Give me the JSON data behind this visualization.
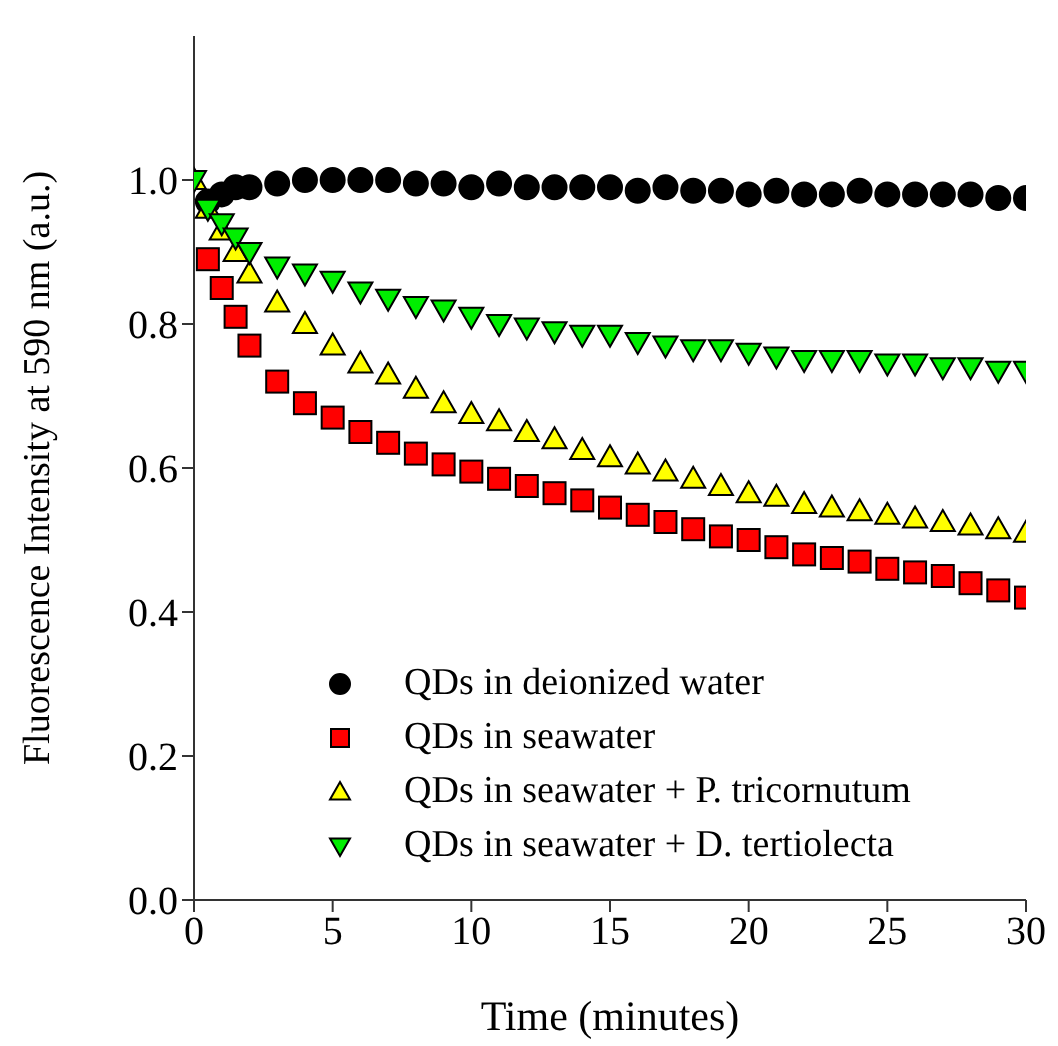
{
  "chart_data": {
    "type": "scatter",
    "xlabel": "Time (minutes)",
    "ylabel": "Fluorescence Intensity at 590 nm (a.u.)",
    "x": [
      0,
      0.5,
      1,
      1.5,
      2,
      3,
      4,
      5,
      6,
      7,
      8,
      9,
      10,
      11,
      12,
      13,
      14,
      15,
      16,
      17,
      18,
      19,
      20,
      21,
      22,
      23,
      24,
      25,
      26,
      27,
      28,
      29,
      30
    ],
    "series": [
      {
        "name": "QDs in deionized water",
        "color": "#000000",
        "marker": "circle",
        "values": [
          null,
          0.97,
          0.98,
          0.99,
          0.99,
          0.995,
          1.0,
          1.0,
          1.0,
          1.0,
          0.995,
          0.995,
          0.99,
          0.995,
          0.99,
          0.99,
          0.99,
          0.99,
          0.985,
          0.99,
          0.985,
          0.985,
          0.98,
          0.985,
          0.98,
          0.98,
          0.985,
          0.98,
          0.98,
          0.98,
          0.98,
          0.975,
          0.975
        ]
      },
      {
        "name": "QDs in seawater",
        "color": "#ff0000",
        "marker": "square",
        "values": [
          null,
          0.89,
          0.85,
          0.81,
          0.77,
          0.72,
          0.69,
          0.67,
          0.65,
          0.635,
          0.62,
          0.605,
          0.595,
          0.585,
          0.575,
          0.565,
          0.555,
          0.545,
          0.535,
          0.525,
          0.515,
          0.505,
          0.5,
          0.49,
          0.48,
          0.475,
          0.47,
          0.46,
          0.455,
          0.45,
          0.44,
          0.43,
          0.42
        ]
      },
      {
        "name": "QDs in seawater + P. tricornutum",
        "color": "#ffff00",
        "marker": "triangle",
        "values": [
          1.0,
          0.96,
          0.93,
          0.9,
          0.87,
          0.83,
          0.8,
          0.77,
          0.745,
          0.73,
          0.71,
          0.69,
          0.675,
          0.665,
          0.65,
          0.64,
          0.625,
          0.615,
          0.605,
          0.595,
          0.585,
          0.575,
          0.565,
          0.56,
          0.55,
          0.545,
          0.54,
          0.535,
          0.53,
          0.525,
          0.52,
          0.515,
          0.51
        ]
      },
      {
        "name": "QDs in seawater + D. tertiolecta",
        "color": "#00ee00",
        "marker": "triangle-down",
        "values": [
          1.0,
          0.96,
          0.94,
          0.92,
          0.9,
          0.88,
          0.87,
          0.86,
          0.845,
          0.835,
          0.825,
          0.82,
          0.81,
          0.8,
          0.795,
          0.79,
          0.785,
          0.785,
          0.775,
          0.77,
          0.765,
          0.765,
          0.76,
          0.755,
          0.75,
          0.75,
          0.75,
          0.745,
          0.745,
          0.74,
          0.74,
          0.735,
          0.735
        ]
      }
    ],
    "xlim": [
      0,
      30
    ],
    "xticks": [
      0,
      5,
      10,
      15,
      20,
      25,
      30
    ],
    "ylim": [
      0,
      1.2
    ],
    "yticks": [
      {
        "value": 0,
        "label": "0.0"
      },
      0.2,
      0.4,
      0.6,
      0.8,
      {
        "value": 1,
        "label": "1.0"
      }
    ],
    "grid": false,
    "legend": "bottom left"
  }
}
